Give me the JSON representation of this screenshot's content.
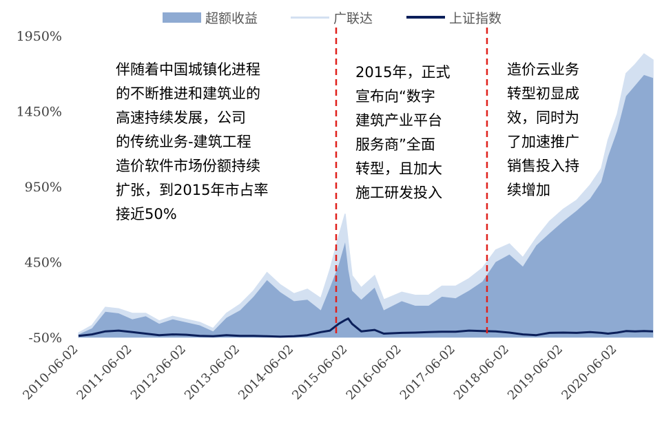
{
  "colors": {
    "excess": "#8eaad2",
    "glodon": "#d3e0f1",
    "sse": "#0b1f5a",
    "marker": "#e0201b",
    "axis": "#7f7f7f"
  },
  "chart_data": {
    "type": "area",
    "x_tick_labels": [
      "2010-06-02",
      "2011-06-02",
      "2012-06-02",
      "2013-06-02",
      "2014-06-02",
      "2015-06-02",
      "2016-06-02",
      "2017-06-02",
      "2018-06-02",
      "2019-06-02",
      "2020-06-02"
    ],
    "y_tick_labels": [
      "1950%",
      "1450%",
      "950%",
      "450%",
      "-50%"
    ],
    "y_ticks": [
      1950,
      1450,
      950,
      450,
      -50
    ],
    "ylim": [
      -50,
      1950
    ],
    "xlim": [
      "2010-06-02",
      "2021-01-31"
    ],
    "legend_position": "top",
    "series": [
      {
        "name": "超额收益",
        "style": "area",
        "points": [
          [
            "2010-06-02",
            -30
          ],
          [
            "2010-09-01",
            10
          ],
          [
            "2010-12-01",
            120
          ],
          [
            "2011-03-01",
            110
          ],
          [
            "2011-06-02",
            70
          ],
          [
            "2011-09-01",
            90
          ],
          [
            "2011-12-01",
            40
          ],
          [
            "2012-03-01",
            70
          ],
          [
            "2012-06-02",
            50
          ],
          [
            "2012-09-01",
            30
          ],
          [
            "2012-12-01",
            -10
          ],
          [
            "2013-03-01",
            80
          ],
          [
            "2013-06-02",
            130
          ],
          [
            "2013-09-01",
            220
          ],
          [
            "2013-12-01",
            330
          ],
          [
            "2014-03-01",
            250
          ],
          [
            "2014-06-02",
            190
          ],
          [
            "2014-09-01",
            200
          ],
          [
            "2014-12-01",
            130
          ],
          [
            "2015-02-01",
            280
          ],
          [
            "2015-04-01",
            430
          ],
          [
            "2015-05-15",
            580
          ],
          [
            "2015-06-05",
            400
          ],
          [
            "2015-07-01",
            260
          ],
          [
            "2015-09-01",
            200
          ],
          [
            "2015-12-01",
            280
          ],
          [
            "2016-02-01",
            130
          ],
          [
            "2016-06-02",
            190
          ],
          [
            "2016-09-01",
            160
          ],
          [
            "2016-12-01",
            160
          ],
          [
            "2017-03-01",
            220
          ],
          [
            "2017-06-02",
            210
          ],
          [
            "2017-09-01",
            260
          ],
          [
            "2017-12-01",
            320
          ],
          [
            "2018-03-01",
            450
          ],
          [
            "2018-06-02",
            500
          ],
          [
            "2018-09-01",
            420
          ],
          [
            "2018-12-01",
            560
          ],
          [
            "2019-03-01",
            640
          ],
          [
            "2019-06-02",
            720
          ],
          [
            "2019-09-01",
            790
          ],
          [
            "2019-12-01",
            870
          ],
          [
            "2020-02-15",
            980
          ],
          [
            "2020-04-01",
            1150
          ],
          [
            "2020-06-02",
            1320
          ],
          [
            "2020-08-01",
            1550
          ],
          [
            "2020-10-01",
            1620
          ],
          [
            "2020-12-01",
            1690
          ],
          [
            "2021-01-31",
            1670
          ]
        ]
      },
      {
        "name": "广联达",
        "style": "line",
        "points": [
          [
            "2010-06-02",
            -20
          ],
          [
            "2010-09-01",
            30
          ],
          [
            "2010-12-01",
            150
          ],
          [
            "2011-03-01",
            140
          ],
          [
            "2011-06-02",
            110
          ],
          [
            "2011-09-01",
            110
          ],
          [
            "2011-12-01",
            60
          ],
          [
            "2012-03-01",
            90
          ],
          [
            "2012-06-02",
            70
          ],
          [
            "2012-09-01",
            50
          ],
          [
            "2012-12-01",
            10
          ],
          [
            "2013-03-01",
            110
          ],
          [
            "2013-06-02",
            170
          ],
          [
            "2013-09-01",
            260
          ],
          [
            "2013-12-01",
            380
          ],
          [
            "2014-03-01",
            300
          ],
          [
            "2014-06-02",
            240
          ],
          [
            "2014-09-01",
            270
          ],
          [
            "2014-12-01",
            210
          ],
          [
            "2015-02-01",
            400
          ],
          [
            "2015-04-01",
            620
          ],
          [
            "2015-05-15",
            770
          ],
          [
            "2015-06-05",
            580
          ],
          [
            "2015-07-01",
            360
          ],
          [
            "2015-09-01",
            280
          ],
          [
            "2015-12-01",
            360
          ],
          [
            "2016-02-01",
            200
          ],
          [
            "2016-06-02",
            250
          ],
          [
            "2016-09-01",
            230
          ],
          [
            "2016-12-01",
            230
          ],
          [
            "2017-03-01",
            290
          ],
          [
            "2017-06-02",
            290
          ],
          [
            "2017-09-01",
            340
          ],
          [
            "2017-12-01",
            410
          ],
          [
            "2018-03-01",
            530
          ],
          [
            "2018-06-02",
            570
          ],
          [
            "2018-09-01",
            480
          ],
          [
            "2018-12-01",
            610
          ],
          [
            "2019-03-01",
            720
          ],
          [
            "2019-06-02",
            800
          ],
          [
            "2019-09-01",
            860
          ],
          [
            "2019-12-01",
            960
          ],
          [
            "2020-02-15",
            1070
          ],
          [
            "2020-04-01",
            1260
          ],
          [
            "2020-06-02",
            1430
          ],
          [
            "2020-08-01",
            1700
          ],
          [
            "2020-10-01",
            1760
          ],
          [
            "2020-12-01",
            1830
          ],
          [
            "2021-01-31",
            1790
          ]
        ]
      },
      {
        "name": "上证指数",
        "style": "line",
        "points": [
          [
            "2010-06-02",
            -40
          ],
          [
            "2010-09-01",
            -30
          ],
          [
            "2010-12-01",
            -10
          ],
          [
            "2011-03-01",
            -5
          ],
          [
            "2011-06-02",
            -15
          ],
          [
            "2011-09-01",
            -25
          ],
          [
            "2011-12-01",
            -35
          ],
          [
            "2012-03-01",
            -30
          ],
          [
            "2012-06-02",
            -32
          ],
          [
            "2012-09-01",
            -40
          ],
          [
            "2012-12-01",
            -42
          ],
          [
            "2013-03-01",
            -35
          ],
          [
            "2013-06-02",
            -40
          ],
          [
            "2013-09-01",
            -40
          ],
          [
            "2013-12-01",
            -42
          ],
          [
            "2014-03-01",
            -45
          ],
          [
            "2014-06-02",
            -42
          ],
          [
            "2014-09-01",
            -35
          ],
          [
            "2014-12-01",
            -15
          ],
          [
            "2015-02-01",
            -5
          ],
          [
            "2015-04-01",
            40
          ],
          [
            "2015-05-15",
            65
          ],
          [
            "2015-06-05",
            75
          ],
          [
            "2015-07-01",
            40
          ],
          [
            "2015-09-01",
            -10
          ],
          [
            "2015-12-01",
            0
          ],
          [
            "2016-02-01",
            -25
          ],
          [
            "2016-06-02",
            -20
          ],
          [
            "2016-09-01",
            -18
          ],
          [
            "2016-12-01",
            -15
          ],
          [
            "2017-03-01",
            -12
          ],
          [
            "2017-06-02",
            -12
          ],
          [
            "2017-09-01",
            -5
          ],
          [
            "2017-12-01",
            -8
          ],
          [
            "2018-03-01",
            -10
          ],
          [
            "2018-06-02",
            -18
          ],
          [
            "2018-09-01",
            -30
          ],
          [
            "2018-12-01",
            -35
          ],
          [
            "2019-03-01",
            -20
          ],
          [
            "2019-06-02",
            -18
          ],
          [
            "2019-09-01",
            -20
          ],
          [
            "2019-12-01",
            -15
          ],
          [
            "2020-02-15",
            -20
          ],
          [
            "2020-04-01",
            -25
          ],
          [
            "2020-06-02",
            -18
          ],
          [
            "2020-08-01",
            -8
          ],
          [
            "2020-10-01",
            -10
          ],
          [
            "2020-12-01",
            -8
          ],
          [
            "2021-01-31",
            -10
          ]
        ]
      }
    ],
    "markers": [
      "2015-03-15",
      "2018-01-01"
    ],
    "annotations": [
      [
        "伴随着中国城镇化进程",
        "的不断推进和建筑业的",
        "高速持续发展，公司",
        "的传统业务-建筑工程",
        "造价软件市场份额持续",
        "扩张，到2015年市占率",
        "接近50%"
      ],
      [
        "2015年，正式",
        "宣布向“数字",
        "建筑产业平台",
        "服务商”全面",
        "转型，且加大",
        "施工研发投入"
      ],
      [
        "造价云业务",
        "转型初显成",
        "效，同时为",
        "了加速推广",
        "销售投入持",
        "续增加"
      ]
    ]
  }
}
